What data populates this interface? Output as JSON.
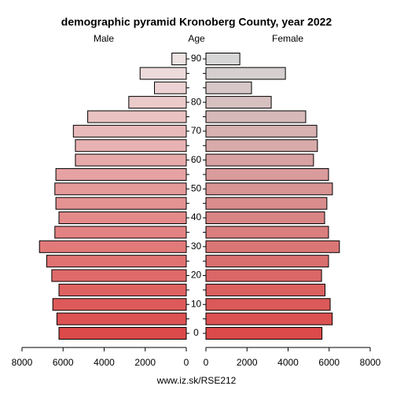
{
  "chart_data": {
    "type": "pyramid",
    "title": "demographic pyramid Kronoberg County, year 2022",
    "y_label": "Age",
    "categories": [
      "0",
      null,
      "10",
      null,
      "20",
      null,
      "30",
      null,
      "40",
      null,
      "50",
      null,
      "60",
      null,
      "70",
      null,
      "80",
      null,
      null,
      "90"
    ],
    "series": [
      {
        "name": "Male",
        "color": "#dc4a4a",
        "color_top": "#eee2e2",
        "values": [
          6200,
          6300,
          6500,
          6200,
          6550,
          6800,
          7150,
          6400,
          6200,
          6350,
          6400,
          6350,
          5400,
          5400,
          5500,
          4800,
          2800,
          1550,
          2250,
          700
        ]
      },
      {
        "name": "Female",
        "color": "#dc4a4a",
        "color_top": "#d6d6d6",
        "values": [
          5650,
          6150,
          6050,
          5800,
          5630,
          5970,
          6500,
          5970,
          5780,
          5890,
          6160,
          5970,
          5240,
          5430,
          5400,
          4860,
          3180,
          2220,
          3870,
          1650
        ]
      }
    ],
    "xlim": [
      0,
      8000
    ],
    "xticks": [
      0,
      2000,
      4000,
      6000,
      8000
    ],
    "footer": "www.iz.sk/RSE212"
  }
}
